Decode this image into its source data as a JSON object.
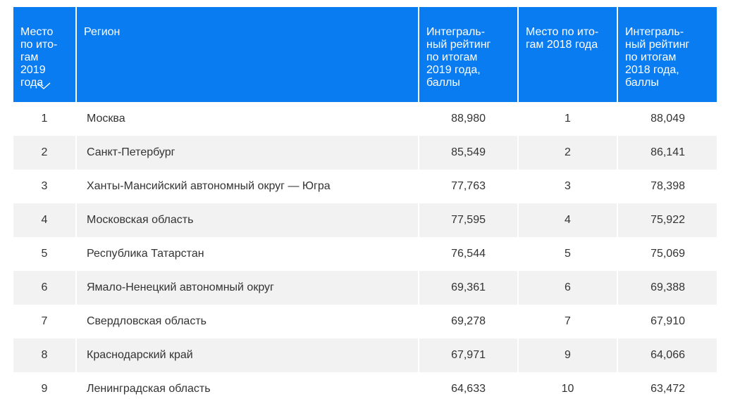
{
  "table": {
    "headers": [
      "Место\nпо ито-\nгам\n2019\nгода",
      "Регион",
      "Интеграль-\nный рейтинг\nпо итогам\n2019 года,\nбаллы",
      "Место по ито-\nгам 2018 года",
      "Интеграль-\nный рейтинг\nпо итогам\n2018 года,\nбаллы"
    ],
    "sort_icon": "chevron-down-icon",
    "header_color": "#0a7cf2",
    "rows": [
      {
        "place2019": "1",
        "region": "Москва",
        "score2019": "88,980",
        "place2018": "1",
        "score2018": "88,049"
      },
      {
        "place2019": "2",
        "region": "Санкт-Петербург",
        "score2019": "85,549",
        "place2018": "2",
        "score2018": "86,141"
      },
      {
        "place2019": "3",
        "region": "Ханты-Мансийский автономный округ — Югра",
        "score2019": "77,763",
        "place2018": "3",
        "score2018": "78,398"
      },
      {
        "place2019": "4",
        "region": "Московская область",
        "score2019": "77,595",
        "place2018": "4",
        "score2018": "75,922"
      },
      {
        "place2019": "5",
        "region": "Республика Татарстан",
        "score2019": "76,544",
        "place2018": "5",
        "score2018": "75,069"
      },
      {
        "place2019": "6",
        "region": "Ямало-Ненецкий автономный округ",
        "score2019": "69,361",
        "place2018": "6",
        "score2018": "69,388"
      },
      {
        "place2019": "7",
        "region": "Свердловская область",
        "score2019": "69,278",
        "place2018": "7",
        "score2018": "67,910"
      },
      {
        "place2019": "8",
        "region": "Краснодарский край",
        "score2019": "67,971",
        "place2018": "9",
        "score2018": "64,066"
      },
      {
        "place2019": "9",
        "region": "Ленинградская область",
        "score2019": "64,633",
        "place2018": "10",
        "score2018": "63,472"
      }
    ]
  }
}
